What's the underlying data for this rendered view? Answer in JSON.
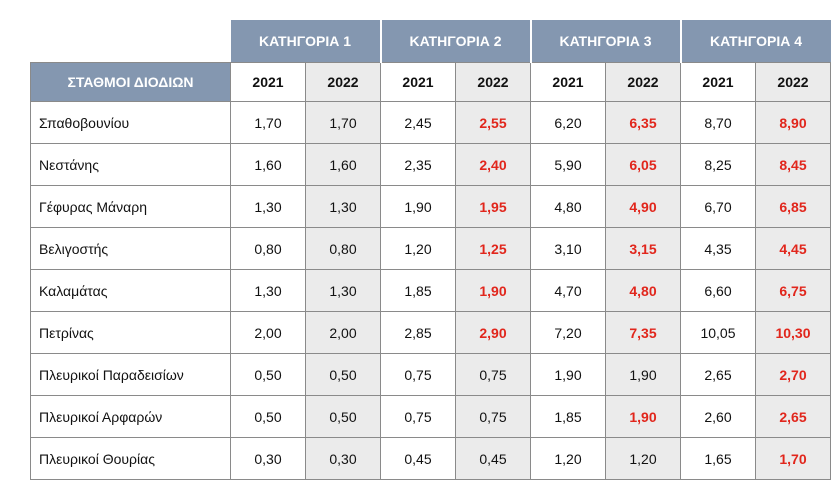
{
  "categories": [
    "ΚΑΤΗΓΟΡΙΑ 1",
    "ΚΑΤΗΓΟΡΙΑ 2",
    "ΚΑΤΗΓΟΡΙΑ 3",
    "ΚΑΤΗΓΟΡΙΑ 4"
  ],
  "stations_header": "ΣΤΑΘΜΟΙ ΔΙΟΔΙΩΝ",
  "years": [
    "2021",
    "2022"
  ],
  "highlight_color": "#e1261c",
  "header_color": "#8497b0",
  "rows": [
    {
      "name": "Σπαθοβουνίου",
      "values": [
        "1,70",
        "1,70",
        "2,45",
        "2,55",
        "6,20",
        "6,35",
        "8,70",
        "8,90"
      ],
      "red": [
        false,
        false,
        false,
        true,
        false,
        true,
        false,
        true
      ]
    },
    {
      "name": "Νεστάνης",
      "values": [
        "1,60",
        "1,60",
        "2,35",
        "2,40",
        "5,90",
        "6,05",
        "8,25",
        "8,45"
      ],
      "red": [
        false,
        false,
        false,
        true,
        false,
        true,
        false,
        true
      ]
    },
    {
      "name": "Γέφυρας Μάναρη",
      "values": [
        "1,30",
        "1,30",
        "1,90",
        "1,95",
        "4,80",
        "4,90",
        "6,70",
        "6,85"
      ],
      "red": [
        false,
        false,
        false,
        true,
        false,
        true,
        false,
        true
      ]
    },
    {
      "name": "Βελιγοστής",
      "values": [
        "0,80",
        "0,80",
        "1,20",
        "1,25",
        "3,10",
        "3,15",
        "4,35",
        "4,45"
      ],
      "red": [
        false,
        false,
        false,
        true,
        false,
        true,
        false,
        true
      ]
    },
    {
      "name": "Καλαμάτας",
      "values": [
        "1,30",
        "1,30",
        "1,85",
        "1,90",
        "4,70",
        "4,80",
        "6,60",
        "6,75"
      ],
      "red": [
        false,
        false,
        false,
        true,
        false,
        true,
        false,
        true
      ]
    },
    {
      "name": "Πετρίνας",
      "values": [
        "2,00",
        "2,00",
        "2,85",
        "2,90",
        "7,20",
        "7,35",
        "10,05",
        "10,30"
      ],
      "red": [
        false,
        false,
        false,
        true,
        false,
        true,
        false,
        true
      ]
    },
    {
      "name": "Πλευρικοί Παραδεισίων",
      "values": [
        "0,50",
        "0,50",
        "0,75",
        "0,75",
        "1,90",
        "1,90",
        "2,65",
        "2,70"
      ],
      "red": [
        false,
        false,
        false,
        false,
        false,
        false,
        false,
        true
      ]
    },
    {
      "name": "Πλευρικοί Αρφαρών",
      "values": [
        "0,50",
        "0,50",
        "0,75",
        "0,75",
        "1,85",
        "1,90",
        "2,60",
        "2,65"
      ],
      "red": [
        false,
        false,
        false,
        false,
        false,
        true,
        false,
        true
      ]
    },
    {
      "name": "Πλευρικοί Θουρίας",
      "values": [
        "0,30",
        "0,30",
        "0,45",
        "0,45",
        "1,20",
        "1,20",
        "1,65",
        "1,70"
      ],
      "red": [
        false,
        false,
        false,
        false,
        false,
        false,
        false,
        true
      ]
    }
  ]
}
